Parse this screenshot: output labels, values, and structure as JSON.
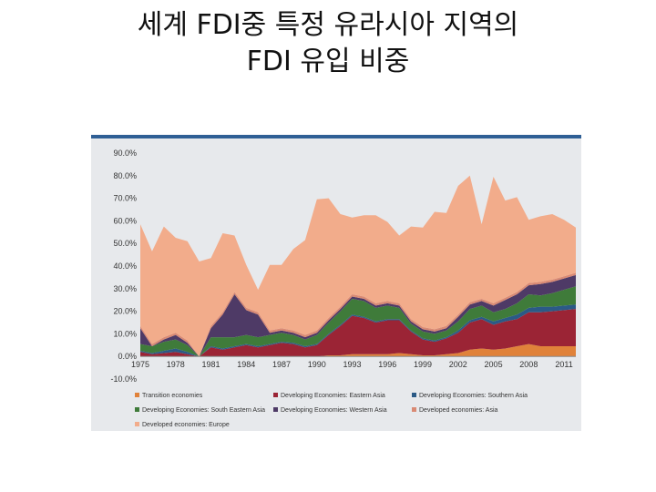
{
  "slide": {
    "title_line1": "세계 FDI중 특정 유라시아 지역의",
    "title_line2": "FDI 유입 비중"
  },
  "chart_data": {
    "type": "area",
    "stacked": true,
    "x": [
      1975,
      1976,
      1977,
      1978,
      1979,
      1980,
      1981,
      1982,
      1983,
      1984,
      1985,
      1986,
      1987,
      1988,
      1989,
      1990,
      1991,
      1992,
      1993,
      1994,
      1995,
      1996,
      1997,
      1998,
      1999,
      2000,
      2001,
      2002,
      2003,
      2004,
      2005,
      2006,
      2007,
      2008,
      2009,
      2010,
      2011,
      2012
    ],
    "xticks": [
      "1975",
      "1978",
      "1981",
      "1984",
      "1987",
      "1990",
      "1993",
      "1996",
      "1999",
      "2002",
      "2005",
      "2008",
      "2011"
    ],
    "yticks": [
      "90.0%",
      "80.0%",
      "70.0%",
      "60.0%",
      "50.0%",
      "40.0%",
      "30.0%",
      "20.0%",
      "10.0%",
      "0.0%",
      "-10.0%"
    ],
    "ylim": [
      -10,
      90
    ],
    "grid": false,
    "legend_position": "bottom",
    "series": [
      {
        "name": "Transition economies",
        "color": "#e0823a",
        "values": [
          0,
          0,
          0,
          0,
          0,
          0,
          0,
          0,
          0,
          0,
          0,
          0,
          0,
          0,
          0,
          0,
          0.5,
          0.5,
          1,
          1,
          1,
          1,
          1.5,
          1,
          0.5,
          0.5,
          1,
          1.5,
          3,
          3.5,
          3,
          3.5,
          4.5,
          5.5,
          4.5,
          4.5,
          4.5,
          4.5
        ]
      },
      {
        "name": "Developing Economies: Eastern Asia",
        "color": "#9b2435",
        "values": [
          2,
          1,
          1.5,
          2,
          1,
          0,
          4,
          3,
          4,
          5,
          4,
          5,
          6,
          5.5,
          4,
          5,
          9,
          13,
          17,
          16,
          14,
          15,
          14.5,
          10,
          7,
          6,
          7,
          9,
          12,
          13,
          11,
          12,
          12,
          14,
          15,
          15.5,
          16,
          16.5
        ]
      },
      {
        "name": "Developing Economies: Southern Asia",
        "color": "#2b5a86",
        "values": [
          0.5,
          0.5,
          1,
          1.5,
          1,
          0,
          0.5,
          0.5,
          0.5,
          0.5,
          0.5,
          0.5,
          0.5,
          0.5,
          0.5,
          0.5,
          0.5,
          0.5,
          0.5,
          0.5,
          0.5,
          0.5,
          0.5,
          0.5,
          0.5,
          0.5,
          0.5,
          1,
          1,
          1,
          1.5,
          1.5,
          2,
          2,
          2.5,
          2,
          2,
          2
        ]
      },
      {
        "name": "Developing Economies: South Eastern Asia",
        "color": "#3f7b3a",
        "values": [
          3,
          3,
          4,
          4,
          3,
          0,
          4,
          5,
          4,
          4,
          4,
          4,
          4,
          3.5,
          3,
          4,
          5,
          6,
          7,
          7,
          6,
          6,
          5,
          3,
          3,
          3,
          3,
          4,
          5,
          5,
          4,
          4,
          5,
          6,
          5,
          6,
          7,
          8
        ]
      },
      {
        "name": "Developing Economies: Western Asia",
        "color": "#4e3a66",
        "values": [
          7,
          0,
          1,
          2,
          1,
          0,
          4,
          10,
          19,
          11,
          10,
          1,
          1,
          1,
          1,
          1,
          1,
          1,
          1,
          1,
          1,
          1,
          1,
          1,
          1,
          1,
          1,
          2,
          2,
          2,
          3,
          4,
          4,
          4,
          5,
          5,
          5,
          5
        ]
      },
      {
        "name": "Developed economies: Asia",
        "color": "#d98a74",
        "values": [
          1,
          1,
          1,
          1,
          1,
          0,
          1,
          1,
          1,
          1,
          1,
          1,
          1,
          1,
          1,
          1,
          1,
          1,
          1,
          1,
          1,
          1,
          1,
          1,
          1,
          1,
          1,
          1,
          1,
          1,
          1,
          1,
          1,
          1,
          1,
          1,
          1,
          1
        ]
      },
      {
        "name": "Developed economies: Europe",
        "color": "#f2ac8b",
        "values": [
          45,
          41,
          49,
          42,
          44,
          42,
          30,
          35,
          25,
          19,
          10,
          29,
          28,
          36,
          42,
          58,
          53,
          41,
          34,
          36,
          39,
          35,
          30,
          41,
          44,
          52,
          50,
          57,
          56,
          33,
          56,
          43,
          42,
          28,
          29,
          29,
          25,
          20
        ]
      }
    ]
  }
}
